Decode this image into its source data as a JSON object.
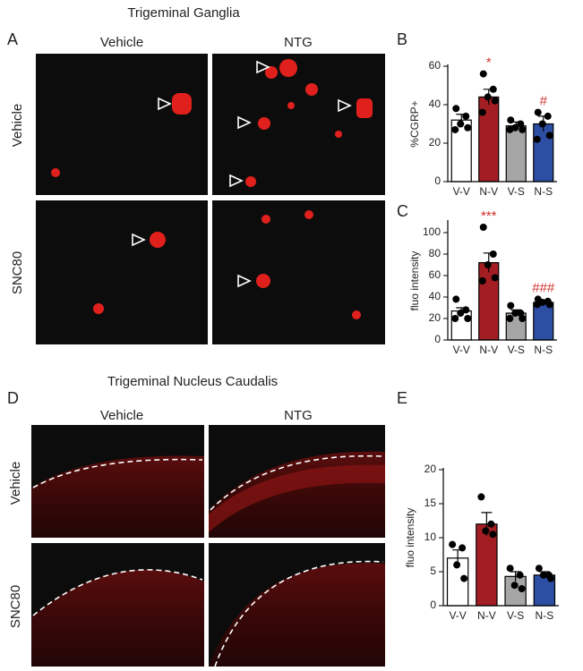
{
  "figure": {
    "panel_a": {
      "label": "A",
      "title": "Trigeminal Ganglia",
      "columns": [
        "Vehicle",
        "NTG"
      ],
      "rows": [
        "Vehicle",
        "SNC80"
      ]
    },
    "panel_d": {
      "label": "D",
      "title": "Trigeminal Nucleus Caudalis",
      "columns": [
        "Vehicle",
        "NTG"
      ],
      "rows": [
        "Vehicle",
        "SNC80"
      ]
    }
  },
  "chart_data": [
    {
      "type": "bar",
      "panel": "B",
      "ylabel": "%CGRP+",
      "categories": [
        "V-V",
        "N-V",
        "V-S",
        "N-S"
      ],
      "colors": [
        "#ffffff",
        "#a31e22",
        "#a6a6a6",
        "#2c4ea3"
      ],
      "values": [
        32,
        44,
        29,
        30
      ],
      "errors": [
        3,
        4,
        2,
        4
      ],
      "points": [
        [
          38,
          34,
          30,
          28,
          27
        ],
        [
          56,
          48,
          44,
          42,
          36
        ],
        [
          32,
          30,
          28,
          27,
          27
        ],
        [
          36,
          34,
          30,
          24,
          22
        ]
      ],
      "annotations": [
        null,
        "*",
        null,
        "#"
      ],
      "annotation_color": "#d0312d",
      "ylim": [
        0,
        60
      ],
      "yticks": [
        0,
        20,
        40,
        60
      ]
    },
    {
      "type": "bar",
      "panel": "C",
      "ylabel": "fluo intensity",
      "categories": [
        "V-V",
        "N-V",
        "V-S",
        "N-S"
      ],
      "colors": [
        "#ffffff",
        "#a31e22",
        "#a6a6a6",
        "#2c4ea3"
      ],
      "values": [
        27,
        72,
        25,
        35
      ],
      "errors": [
        3,
        9,
        3,
        1
      ],
      "points": [
        [
          38,
          28,
          25,
          20,
          20
        ],
        [
          105,
          80,
          70,
          58,
          55
        ],
        [
          32,
          25,
          25,
          20,
          20
        ],
        [
          38,
          36,
          35,
          33,
          33
        ]
      ],
      "annotations": [
        null,
        "***",
        null,
        "###"
      ],
      "annotation_color": "#d0312d",
      "ylim": [
        0,
        110
      ],
      "yticks": [
        0,
        20,
        40,
        60,
        80,
        100
      ]
    },
    {
      "type": "bar",
      "panel": "E",
      "ylabel": "fluo intensity",
      "categories": [
        "V-V",
        "N-V",
        "V-S",
        "N-S"
      ],
      "colors": [
        "#ffffff",
        "#a31e22",
        "#a6a6a6",
        "#2c4ea3"
      ],
      "values": [
        7,
        12,
        4.3,
        4.5
      ],
      "errors": [
        1.2,
        1.7,
        0.7,
        0.5
      ],
      "points": [
        [
          9,
          8.5,
          6,
          4
        ],
        [
          16,
          12,
          11,
          10.5
        ],
        [
          5.5,
          4.5,
          3,
          2.5
        ],
        [
          5.5,
          4.5,
          4.5,
          4
        ]
      ],
      "ylim": [
        0,
        20
      ],
      "yticks": [
        0,
        5,
        10,
        15,
        20
      ]
    }
  ]
}
